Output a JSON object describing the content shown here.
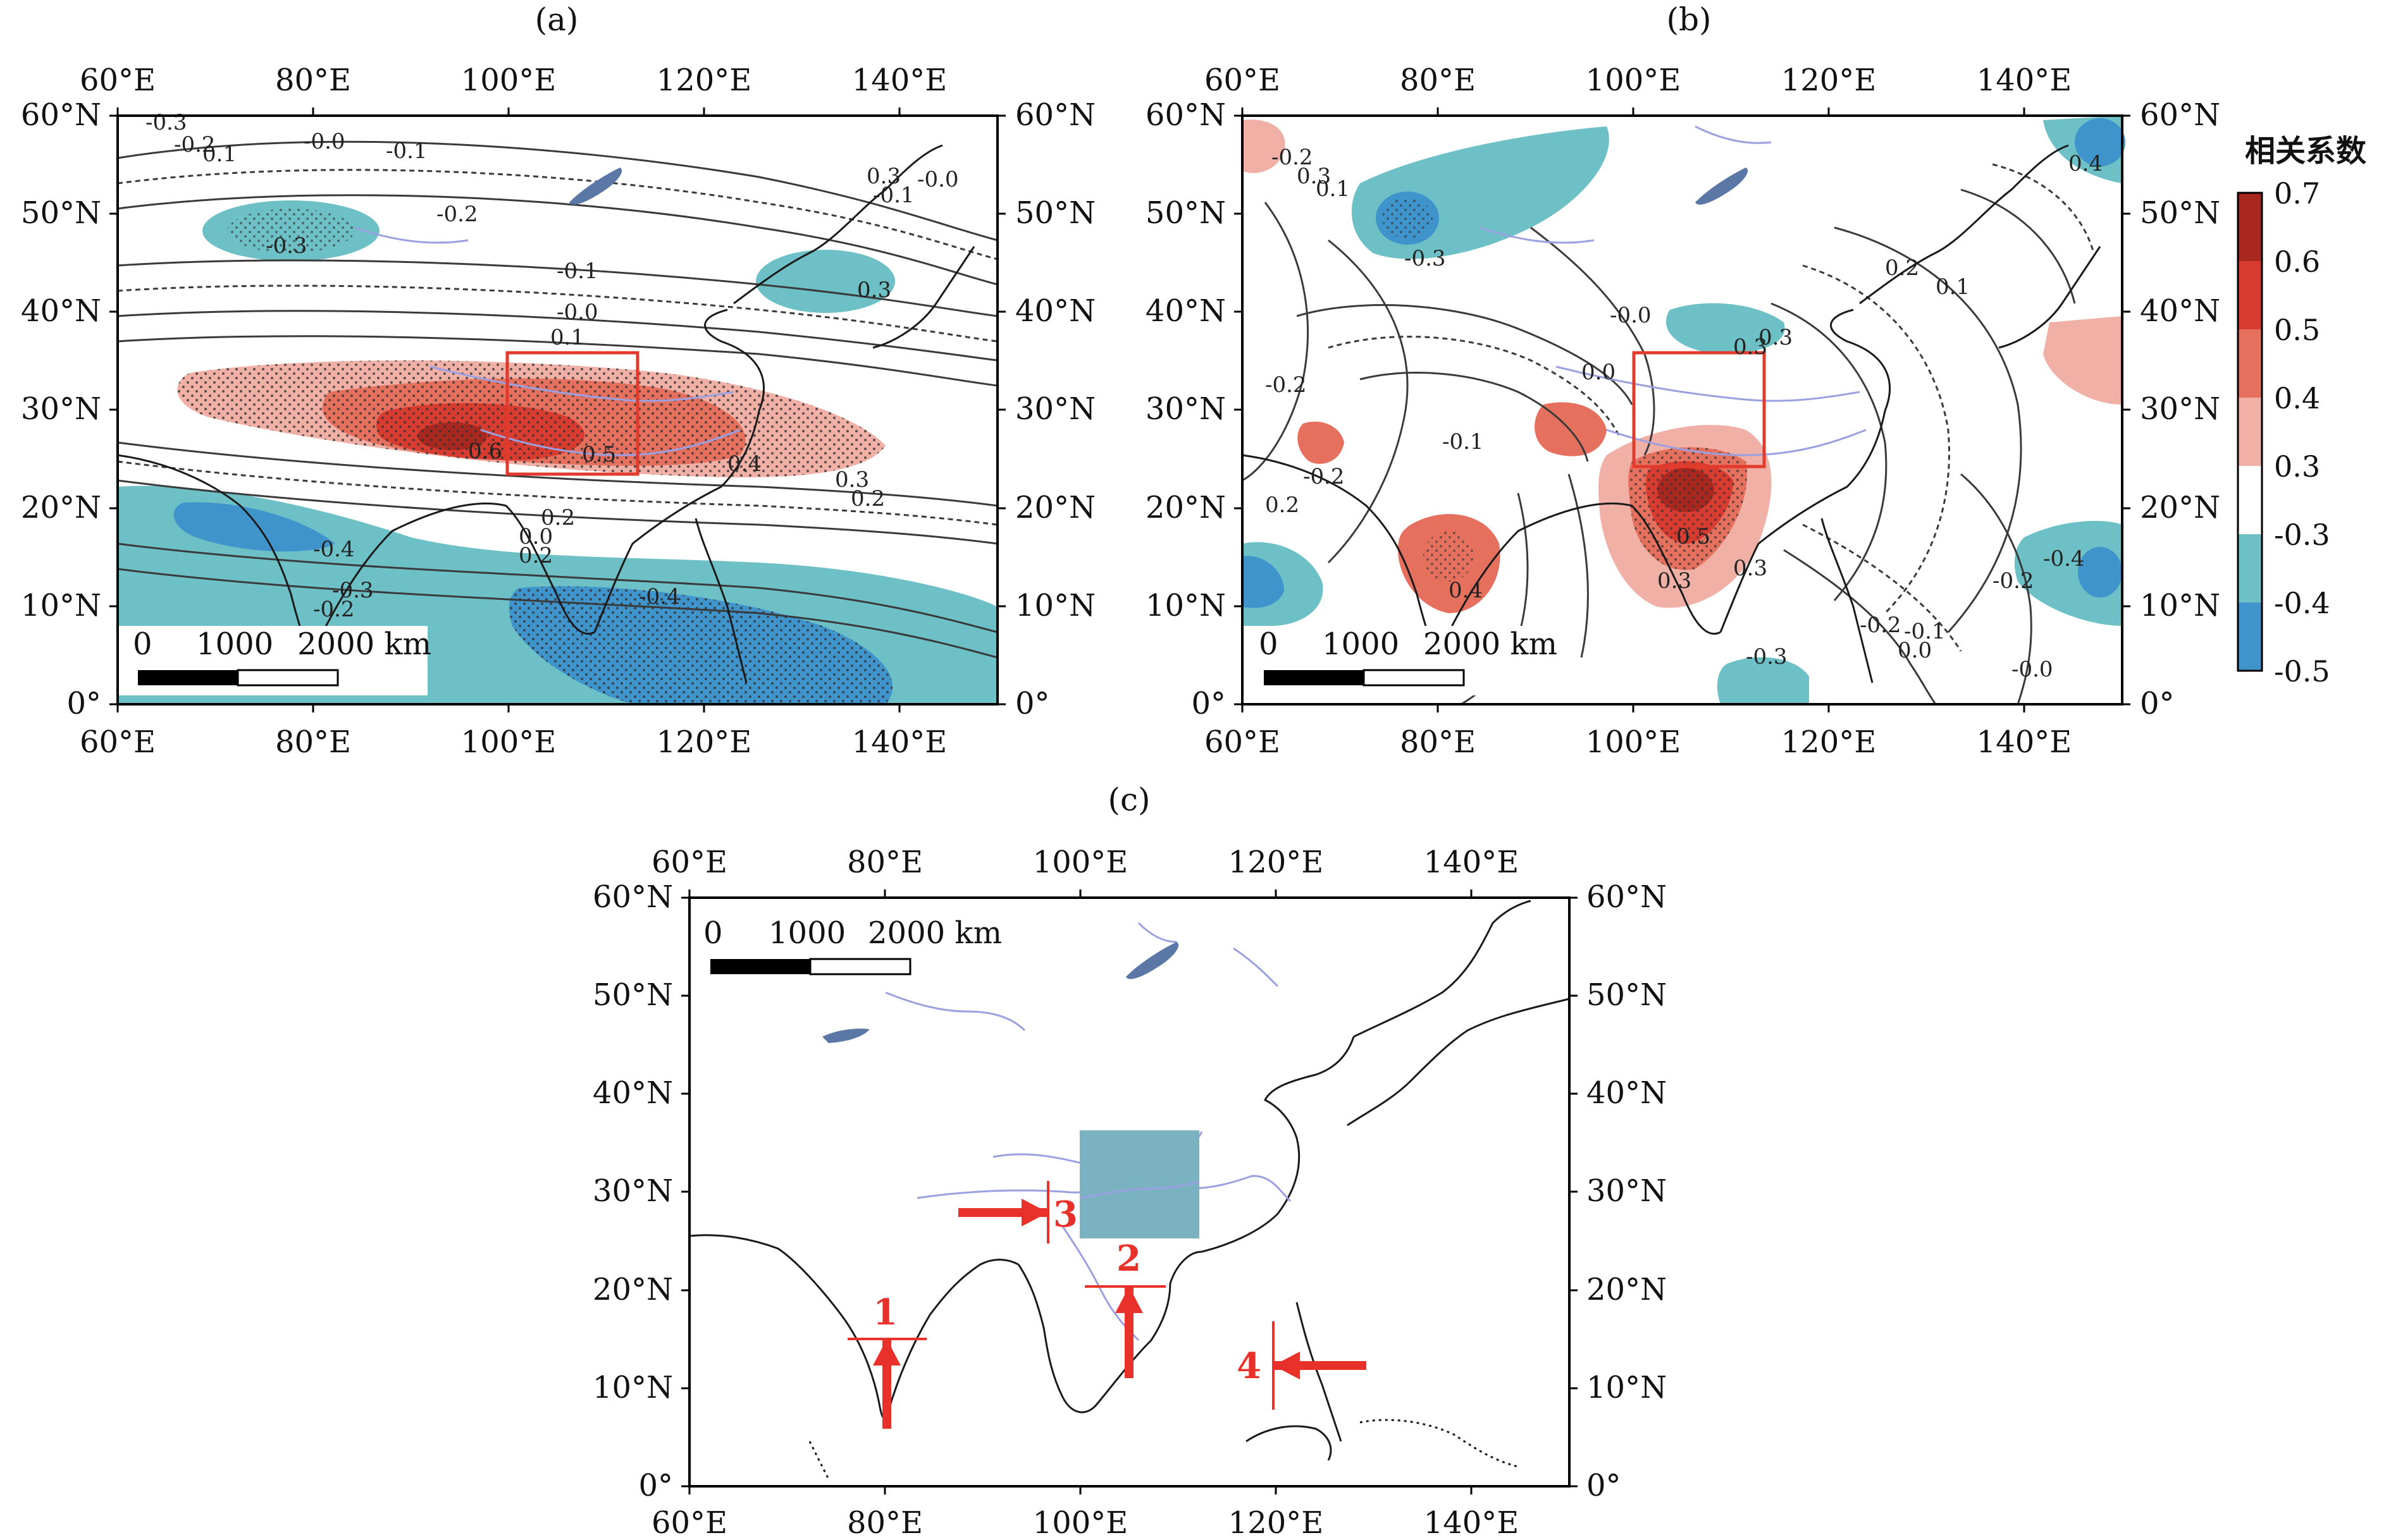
{
  "panels": {
    "a": {
      "label": "(a)",
      "contour_labels": [
        "-0.3",
        "-0.2",
        "0.1",
        "-0.0",
        "-0.1",
        "-0.2",
        "-0.3",
        "-0.1",
        "-0.0",
        "0.1",
        "0.3",
        "0.3",
        "0.6",
        "0.5",
        "0.4",
        "0.3",
        "0.2",
        "0.2",
        "0.0",
        "0.2",
        "-0.4",
        "-0.3",
        "-0.2",
        "-0.4",
        "-0.0",
        "-0.1"
      ]
    },
    "b": {
      "label": "(b)",
      "contour_labels": [
        "-0.2",
        "0.3",
        "-0.3",
        "0.1",
        "-0.2",
        "-0.0",
        "0.0",
        "0.3",
        "0.3",
        "0.2",
        "0.1",
        "-0.2",
        "-0.1",
        "0.2",
        "0.5",
        "0.3",
        "0.4",
        "0.3",
        "-0.2",
        "-0.1",
        "-0.3",
        "-0.4",
        "-0.0",
        "-0.2",
        "0.0",
        "0.4"
      ]
    },
    "c": {
      "label": "(c)",
      "section_markers": [
        "1",
        "2",
        "3",
        "4"
      ]
    }
  },
  "axes": {
    "lon_labels": [
      "60°E",
      "80°E",
      "100°E",
      "120°E",
      "140°E"
    ],
    "lat_labels": [
      "60°N",
      "50°N",
      "40°N",
      "30°N",
      "20°N",
      "10°N",
      "0°"
    ]
  },
  "scale_bar": {
    "labels": [
      "0",
      "1000",
      "2000 km"
    ]
  },
  "legend": {
    "title": "相关系数",
    "ticks": [
      "0.7",
      "0.6",
      "0.5",
      "0.4",
      "0.3",
      "-0.3",
      "-0.4",
      "-0.5"
    ],
    "colors": [
      "#a8281f",
      "#d83c30",
      "#e5705e",
      "#f0b0a6",
      "#ffffff",
      "#6cc0c6",
      "#3f94cc"
    ]
  },
  "colors": {
    "red_box": "#e23b2e",
    "teal_box": "#7ab2c2",
    "arrow": "#e8312a",
    "coast": "#1a1a1a",
    "river": "#9aa0e0",
    "lake": "#5a77a6"
  }
}
